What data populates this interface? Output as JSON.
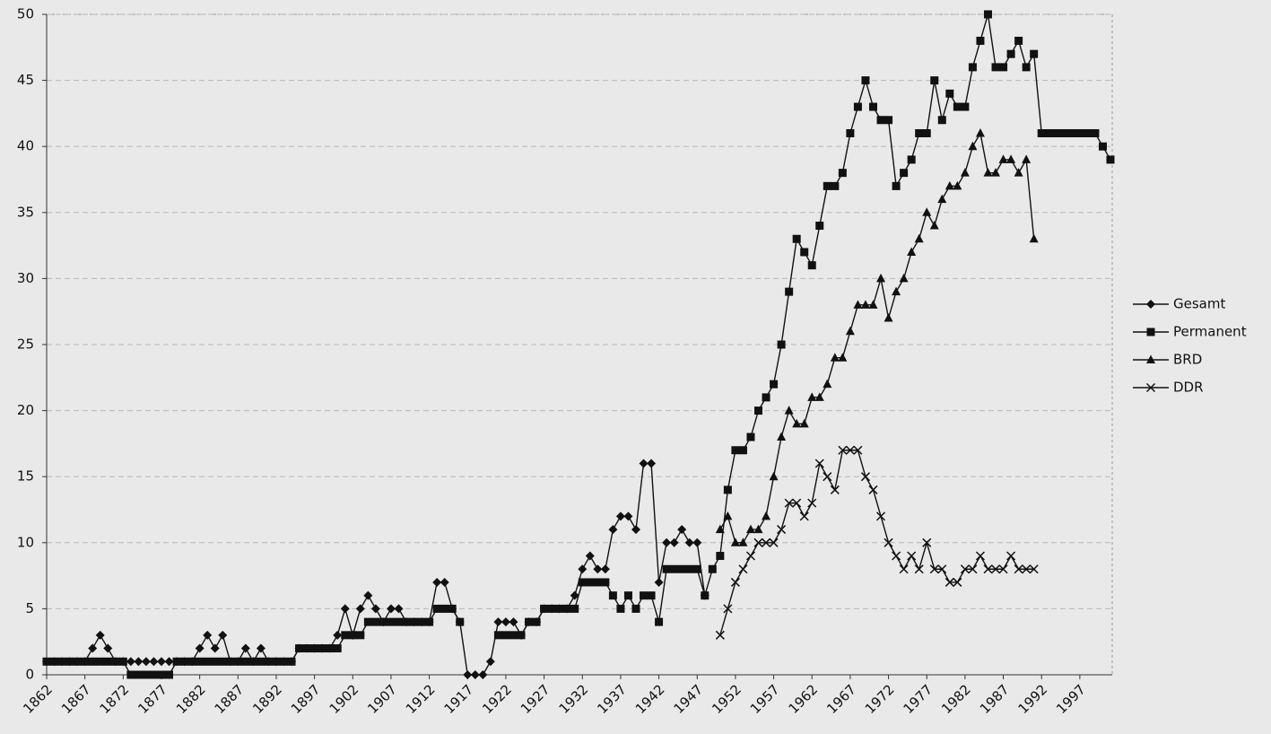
{
  "chart_data": {
    "type": "line",
    "xlim": [
      1862,
      2001
    ],
    "xticks": [
      1862,
      1867,
      1872,
      1877,
      1882,
      1887,
      1892,
      1897,
      1902,
      1907,
      1912,
      1917,
      1922,
      1927,
      1932,
      1937,
      1942,
      1947,
      1952,
      1957,
      1962,
      1967,
      1972,
      1977,
      1982,
      1987,
      1992,
      1997
    ],
    "ylim": [
      0,
      50
    ],
    "yticks": [
      0,
      5,
      10,
      15,
      20,
      25,
      30,
      35,
      40,
      45,
      50
    ],
    "grid": true,
    "legend": "right",
    "series": [
      {
        "name": "Gesamt",
        "color": "#111111",
        "marker": "diamond",
        "x": [
          1862,
          1863,
          1864,
          1865,
          1866,
          1867,
          1868,
          1869,
          1870,
          1871,
          1872,
          1873,
          1874,
          1875,
          1876,
          1877,
          1878,
          1879,
          1880,
          1881,
          1882,
          1883,
          1884,
          1885,
          1886,
          1887,
          1888,
          1889,
          1890,
          1891,
          1892,
          1893,
          1894,
          1895,
          1896,
          1897,
          1898,
          1899,
          1900,
          1901,
          1902,
          1903,
          1904,
          1905,
          1906,
          1907,
          1908,
          1909,
          1910,
          1911,
          1912,
          1913,
          1914,
          1915,
          1916,
          1917,
          1918,
          1919,
          1920,
          1921,
          1922,
          1923,
          1924,
          1925,
          1926,
          1927,
          1928,
          1929,
          1930,
          1931,
          1932,
          1933,
          1934,
          1935,
          1936,
          1937,
          1938,
          1939,
          1940,
          1941,
          1942,
          1943,
          1944,
          1945,
          1946,
          1947,
          1948
        ],
        "values": [
          1,
          1,
          1,
          1,
          1,
          1,
          2,
          3,
          2,
          1,
          1,
          1,
          1,
          1,
          1,
          1,
          1,
          1,
          1,
          1,
          2,
          3,
          2,
          3,
          1,
          1,
          2,
          1,
          2,
          1,
          1,
          1,
          1,
          2,
          2,
          2,
          2,
          2,
          3,
          5,
          3,
          5,
          6,
          5,
          4,
          5,
          5,
          4,
          4,
          4,
          4,
          7,
          7,
          5,
          4,
          0,
          0,
          0,
          1,
          4,
          4,
          4,
          3,
          4,
          4,
          5,
          5,
          5,
          5,
          6,
          8,
          9,
          8,
          8,
          11,
          12,
          12,
          11,
          16,
          16,
          7,
          10,
          10,
          11,
          10,
          10,
          6
        ]
      },
      {
        "name": "Permanent",
        "color": "#111111",
        "marker": "square",
        "x": [
          1862,
          1863,
          1864,
          1865,
          1866,
          1867,
          1868,
          1869,
          1870,
          1871,
          1872,
          1873,
          1874,
          1875,
          1876,
          1877,
          1878,
          1879,
          1880,
          1881,
          1882,
          1883,
          1884,
          1885,
          1886,
          1887,
          1888,
          1889,
          1890,
          1891,
          1892,
          1893,
          1894,
          1895,
          1896,
          1897,
          1898,
          1899,
          1900,
          1901,
          1902,
          1903,
          1904,
          1905,
          1906,
          1907,
          1908,
          1909,
          1910,
          1911,
          1912,
          1913,
          1914,
          1915,
          1916,
          1917,
          1918,
          1919,
          1920,
          1921,
          1922,
          1923,
          1924,
          1925,
          1926,
          1927,
          1928,
          1929,
          1930,
          1931,
          1932,
          1933,
          1934,
          1935,
          1936,
          1937,
          1938,
          1939,
          1940,
          1941,
          1942,
          1943,
          1944,
          1945,
          1946,
          1947,
          1948,
          1949,
          1950,
          1951,
          1952,
          1953,
          1954,
          1955,
          1956,
          1957,
          1958,
          1959,
          1960,
          1961,
          1962,
          1963,
          1964,
          1965,
          1966,
          1967,
          1968,
          1969,
          1970,
          1971,
          1972,
          1973,
          1974,
          1975,
          1976,
          1977,
          1978,
          1979,
          1980,
          1981,
          1982,
          1983,
          1984,
          1985,
          1986,
          1987,
          1988,
          1989,
          1990,
          1991,
          1992,
          1993,
          1994,
          1995,
          1996,
          1997,
          1998,
          1999,
          2000,
          2001
        ],
        "values": [
          1,
          1,
          1,
          1,
          1,
          1,
          1,
          1,
          1,
          1,
          1,
          0,
          0,
          0,
          0,
          0,
          0,
          1,
          1,
          1,
          1,
          1,
          1,
          1,
          1,
          1,
          1,
          1,
          1,
          1,
          1,
          1,
          1,
          2,
          2,
          2,
          2,
          2,
          2,
          3,
          3,
          3,
          4,
          4,
          4,
          4,
          4,
          4,
          4,
          4,
          4,
          5,
          5,
          5,
          4,
          null,
          null,
          null,
          null,
          3,
          3,
          3,
          3,
          4,
          4,
          5,
          5,
          5,
          5,
          5,
          7,
          7,
          7,
          7,
          6,
          5,
          6,
          5,
          6,
          6,
          4,
          8,
          8,
          8,
          8,
          8,
          6,
          8,
          9,
          14,
          17,
          17,
          18,
          20,
          21,
          22,
          25,
          29,
          33,
          32,
          31,
          34,
          37,
          37,
          38,
          41,
          43,
          45,
          43,
          42,
          42,
          37,
          38,
          39,
          41,
          41,
          45,
          42,
          44,
          43,
          43,
          46,
          48,
          50,
          46,
          46,
          47,
          48,
          46,
          47,
          41,
          41,
          41,
          41,
          41,
          41,
          41,
          41,
          40,
          39
        ]
      },
      {
        "name": "BRD",
        "color": "#111111",
        "marker": "triangle",
        "x": [
          1950,
          1951,
          1952,
          1953,
          1954,
          1955,
          1956,
          1957,
          1958,
          1959,
          1960,
          1961,
          1962,
          1963,
          1964,
          1965,
          1966,
          1967,
          1968,
          1969,
          1970,
          1971,
          1972,
          1973,
          1974,
          1975,
          1976,
          1977,
          1978,
          1979,
          1980,
          1981,
          1982,
          1983,
          1984,
          1985,
          1986,
          1987,
          1988,
          1989,
          1990,
          1991
        ],
        "values": [
          11,
          12,
          10,
          10,
          11,
          11,
          12,
          15,
          18,
          20,
          19,
          19,
          21,
          21,
          22,
          24,
          24,
          26,
          28,
          28,
          28,
          30,
          27,
          29,
          30,
          32,
          33,
          35,
          34,
          36,
          37,
          37,
          38,
          40,
          41,
          38,
          38,
          39,
          39,
          38,
          39,
          33
        ]
      },
      {
        "name": "DDR",
        "color": "#111111",
        "marker": "cross",
        "x": [
          1950,
          1951,
          1952,
          1953,
          1954,
          1955,
          1956,
          1957,
          1958,
          1959,
          1960,
          1961,
          1962,
          1963,
          1964,
          1965,
          1966,
          1967,
          1968,
          1969,
          1970,
          1971,
          1972,
          1973,
          1974,
          1975,
          1976,
          1977,
          1978,
          1979,
          1980,
          1981,
          1982,
          1983,
          1984,
          1985,
          1986,
          1987,
          1988,
          1989,
          1990,
          1991
        ],
        "values": [
          3,
          5,
          7,
          8,
          9,
          10,
          10,
          10,
          11,
          13,
          13,
          12,
          13,
          16,
          15,
          14,
          17,
          17,
          17,
          15,
          14,
          12,
          10,
          9,
          8,
          9,
          8,
          10,
          8,
          8,
          7,
          7,
          8,
          8,
          9,
          8,
          8,
          8,
          9,
          8,
          8,
          8
        ]
      }
    ]
  }
}
